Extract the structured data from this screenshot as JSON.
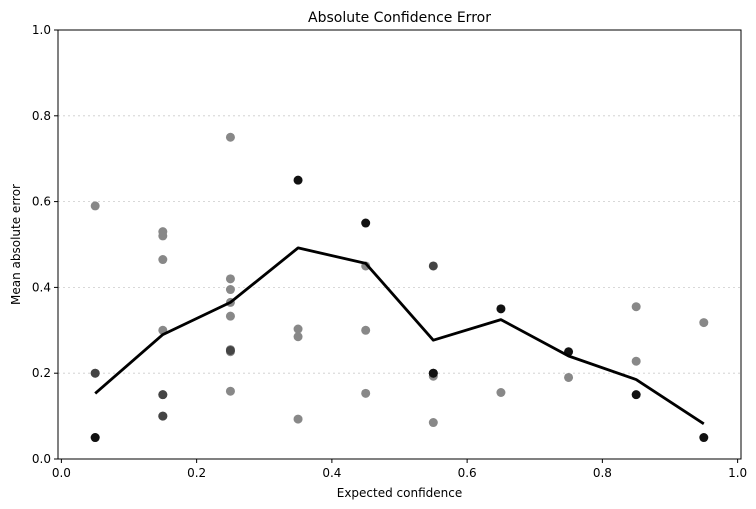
{
  "chart_data": {
    "type": "scatter",
    "title": "Absolute Confidence Error",
    "xlabel": "Expected confidence",
    "ylabel": "Mean absolute error",
    "xlim": [
      -0.005,
      1.005
    ],
    "ylim": [
      0,
      1.0
    ],
    "xticks": [
      "0.0",
      "0.2",
      "0.4",
      "0.6",
      "0.8",
      "1.0"
    ],
    "yticks": [
      "0.0",
      "0.2",
      "0.4",
      "0.6",
      "0.8",
      "1.0"
    ],
    "grid": "y-dotted",
    "legend": "none",
    "series": [
      {
        "type": "scatter",
        "color": "#888888",
        "points": [
          [
            0.05,
            0.59
          ],
          [
            0.05,
            0.2
          ],
          [
            0.05,
            0.05
          ],
          [
            0.15,
            0.53
          ],
          [
            0.15,
            0.52
          ],
          [
            0.15,
            0.465
          ],
          [
            0.15,
            0.3
          ],
          [
            0.15,
            0.15
          ],
          [
            0.15,
            0.1
          ],
          [
            0.25,
            0.75
          ],
          [
            0.25,
            0.42
          ],
          [
            0.25,
            0.395
          ],
          [
            0.25,
            0.365
          ],
          [
            0.25,
            0.333
          ],
          [
            0.25,
            0.255
          ],
          [
            0.25,
            0.25
          ],
          [
            0.25,
            0.158
          ],
          [
            0.35,
            0.303
          ],
          [
            0.35,
            0.285
          ],
          [
            0.35,
            0.093
          ],
          [
            0.45,
            0.45
          ],
          [
            0.45,
            0.3
          ],
          [
            0.45,
            0.153
          ],
          [
            0.55,
            0.193
          ],
          [
            0.55,
            0.085
          ],
          [
            0.65,
            0.155
          ],
          [
            0.75,
            0.19
          ],
          [
            0.85,
            0.355
          ],
          [
            0.85,
            0.228
          ],
          [
            0.95,
            0.318
          ]
        ]
      },
      {
        "type": "scatter",
        "color": "#444444",
        "points": [
          [
            0.05,
            0.2
          ],
          [
            0.15,
            0.15
          ],
          [
            0.15,
            0.1
          ],
          [
            0.25,
            0.253
          ],
          [
            0.55,
            0.45
          ],
          [
            0.55,
            0.2
          ]
        ]
      },
      {
        "type": "scatter",
        "color": "#111111",
        "points": [
          [
            0.05,
            0.05
          ],
          [
            0.35,
            0.65
          ],
          [
            0.45,
            0.55
          ],
          [
            0.55,
            0.2
          ],
          [
            0.65,
            0.35
          ],
          [
            0.75,
            0.25
          ],
          [
            0.85,
            0.15
          ],
          [
            0.95,
            0.05
          ]
        ]
      },
      {
        "type": "line",
        "color": "#000000",
        "points": [
          [
            0.05,
            0.153
          ],
          [
            0.15,
            0.29
          ],
          [
            0.25,
            0.365
          ],
          [
            0.35,
            0.492
          ],
          [
            0.45,
            0.456
          ],
          [
            0.55,
            0.277
          ],
          [
            0.65,
            0.325
          ],
          [
            0.75,
            0.24
          ],
          [
            0.85,
            0.185
          ],
          [
            0.95,
            0.082
          ]
        ]
      }
    ]
  }
}
